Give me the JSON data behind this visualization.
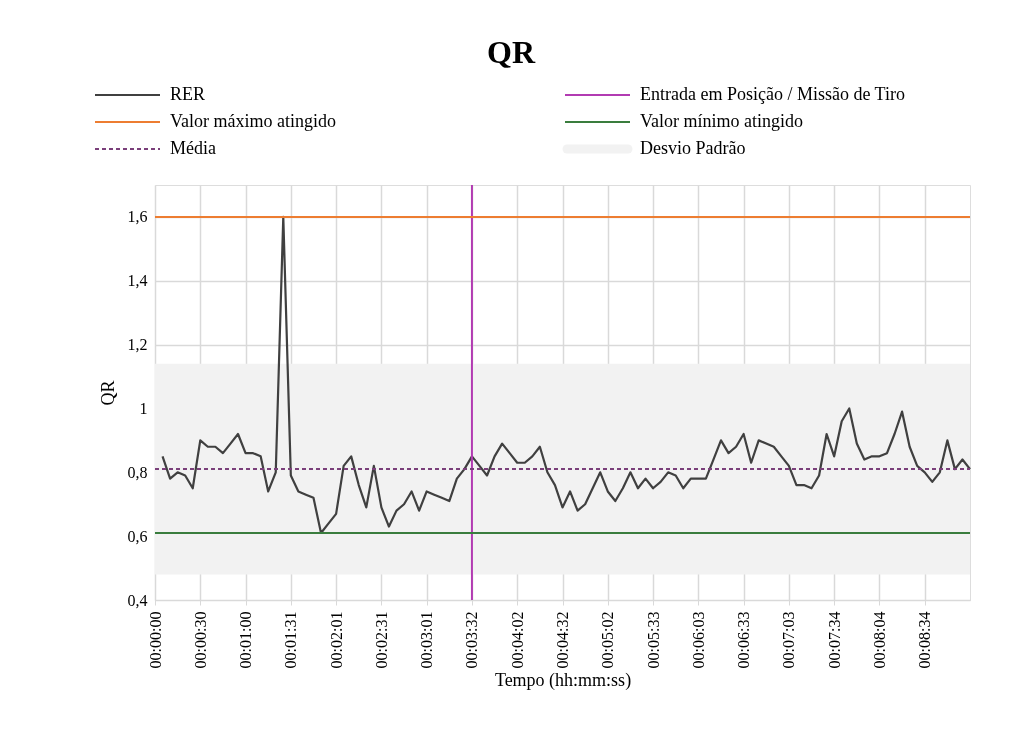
{
  "chart_data": {
    "type": "line",
    "title": "QR",
    "xlabel": "Tempo (hh:mm:ss)",
    "ylabel": "QR",
    "categories": [
      "00:00:00",
      null,
      null,
      null,
      null,
      null,
      "00:00:30",
      null,
      null,
      null,
      null,
      null,
      "00:01:00",
      null,
      null,
      null,
      null,
      null,
      "00:01:31",
      null,
      null,
      null,
      null,
      null,
      "00:02:01",
      null,
      null,
      null,
      null,
      null,
      "00:02:31",
      null,
      null,
      null,
      null,
      null,
      "00:03:01",
      null,
      null,
      null,
      null,
      null,
      "00:03:32",
      null,
      null,
      null,
      null,
      null,
      "00:04:02",
      null,
      null,
      null,
      null,
      null,
      "00:04:32",
      null,
      null,
      null,
      null,
      null,
      "00:05:02",
      null,
      null,
      null,
      null,
      null,
      "00:05:33",
      null,
      null,
      null,
      null,
      null,
      "00:06:03",
      null,
      null,
      null,
      null,
      null,
      "00:06:33",
      null,
      null,
      null,
      null,
      null,
      "00:07:03",
      null,
      null,
      null,
      null,
      null,
      "00:07:34",
      null,
      null,
      null,
      null,
      null,
      "00:08:04",
      null,
      null,
      null,
      null,
      null,
      "00:08:34",
      null,
      null,
      null,
      null,
      null,
      null
    ],
    "series": [
      {
        "name": "RER",
        "color": "#404040",
        "values": [
          null,
          0.85,
          0.78,
          0.8,
          0.79,
          0.75,
          0.9,
          0.88,
          0.88,
          0.86,
          0.89,
          0.92,
          0.86,
          0.86,
          0.85,
          0.74,
          0.8,
          1.6,
          0.79,
          0.74,
          0.73,
          0.72,
          0.61,
          0.64,
          0.67,
          0.82,
          0.85,
          0.76,
          0.69,
          0.82,
          0.69,
          0.63,
          0.68,
          0.7,
          0.74,
          0.68,
          0.74,
          0.73,
          0.72,
          0.71,
          0.78,
          0.81,
          0.85,
          0.82,
          0.79,
          0.85,
          0.89,
          0.86,
          0.83,
          0.83,
          0.85,
          0.88,
          0.8,
          0.76,
          0.69,
          0.74,
          0.68,
          0.7,
          0.75,
          0.8,
          0.74,
          0.71,
          0.75,
          0.8,
          0.75,
          0.78,
          0.75,
          0.77,
          0.8,
          0.79,
          0.75,
          0.78,
          0.78,
          0.78,
          0.84,
          0.9,
          0.86,
          0.88,
          0.92,
          0.83,
          0.9,
          0.89,
          0.88,
          0.85,
          0.82,
          0.76,
          0.76,
          0.75,
          0.79,
          0.92,
          0.85,
          0.96,
          1.0,
          0.89,
          0.84,
          0.85,
          0.85,
          0.86,
          0.92,
          0.99,
          0.88,
          0.82,
          0.8,
          0.77,
          0.8,
          0.9,
          0.81,
          0.84,
          0.81
        ]
      }
    ],
    "ylim": [
      0.4,
      1.7
    ],
    "yticks": [
      {
        "value": 0.4,
        "label": "0,4"
      },
      {
        "value": 0.6,
        "label": "0,6"
      },
      {
        "value": 0.8,
        "label": "0,8"
      },
      {
        "value": 1,
        "label": "1"
      },
      {
        "value": 1.2,
        "label": "1,2"
      },
      {
        "value": 1.4,
        "label": "1,4"
      },
      {
        "value": 1.6,
        "label": "1,6"
      }
    ],
    "ref_lines": [
      {
        "axis": "x",
        "value": "00:03:32",
        "label": "Entrada em Posição / Missão de Tiro",
        "color": "#b23bb2"
      },
      {
        "axis": "y",
        "value": 1.6,
        "label": "Valor máximo atingido",
        "color": "#ed7d31"
      },
      {
        "axis": "y",
        "value": 0.61,
        "label": "Valor mínimo atingido",
        "color": "#3a7d3e"
      },
      {
        "axis": "y",
        "value": 0.81,
        "label": "Média",
        "color": "#7a3f7a",
        "line_style": "dashed"
      }
    ],
    "bands": [
      {
        "axis": "y",
        "from": 0.48,
        "to": 1.14,
        "label": "Desvio Padrão",
        "color": "#f2f2f2"
      }
    ],
    "grid": true,
    "legend": "top"
  }
}
